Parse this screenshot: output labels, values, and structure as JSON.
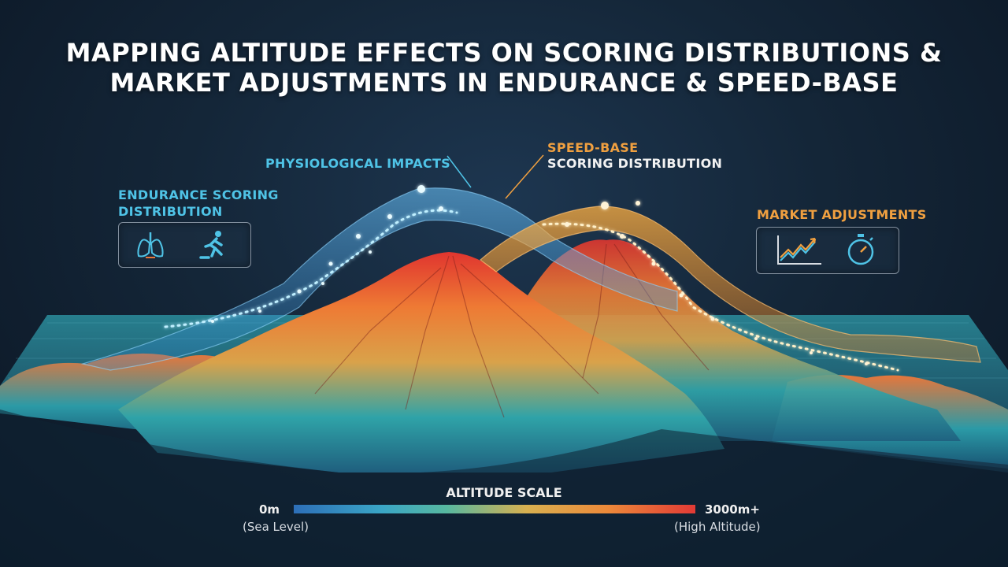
{
  "title": {
    "line1": "MAPPING ALTITUDE EFFECTS ON SCORING DISTRIBUTIONS &",
    "line2": "MARKET ADJUSTMENTS IN ENDURANCE & SPEED-BASE"
  },
  "labels": {
    "endurance_line1": "ENDURANCE SCORING",
    "endurance_line2": "DISTRIBUTION",
    "physiological": "PHYSIOLOGICAL IMPACTS",
    "speed_line1": "SPEED-BASE",
    "speed_line2": "SCORING DISTRIBUTION",
    "market": "MARKET ADJUSTMENTS"
  },
  "icons": {
    "endurance_panel": [
      "lungs-icon",
      "runner-icon"
    ],
    "market_panel": [
      "trend-chart-icon",
      "stopwatch-icon"
    ]
  },
  "altitude_scale": {
    "title": "ALTITUDE SCALE",
    "min_label": "0m",
    "min_sub": "(Sea Level)",
    "max_label": "3000m+",
    "max_sub": "(High Altitude)"
  },
  "colors": {
    "endurance": "#4fc3e6",
    "speed": "#f0a040",
    "low_altitude": "#2d6fb8",
    "high_altitude": "#e23a35"
  }
}
